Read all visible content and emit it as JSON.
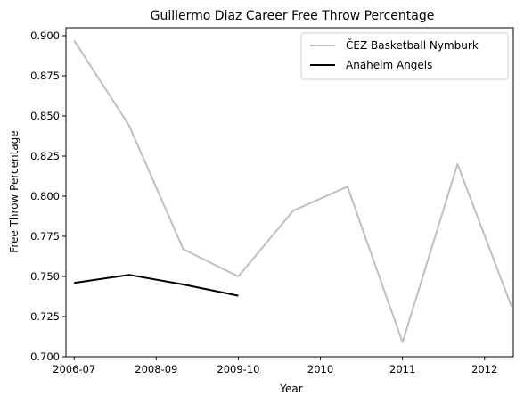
{
  "chart_data": {
    "type": "line",
    "title": "Guillermo Diaz  Career Free Throw Percentage",
    "xlabel": "Year",
    "ylabel": "Free Throw Percentage",
    "x_ticks": [
      "2006-07",
      "2008-09",
      "2009-10",
      "2010",
      "2011",
      "2012"
    ],
    "y_ticks": [
      "0.700",
      "0.725",
      "0.750",
      "0.775",
      "0.800",
      "0.825",
      "0.850",
      "0.875",
      "0.900"
    ],
    "ylim": [
      0.7,
      0.905
    ],
    "xlim": [
      -0.1,
      5.35
    ],
    "grid": false,
    "legend_position": "top-right",
    "series": [
      {
        "name": "ČEZ Basketball Nymburk",
        "color": "#bfbfbf",
        "x": [
          0,
          0.67,
          1.33,
          2.0,
          2.67,
          3.33,
          4.0,
          4.67,
          5.33
        ],
        "values": [
          0.897,
          0.844,
          0.767,
          0.75,
          0.791,
          0.806,
          0.709,
          0.82,
          0.731
        ]
      },
      {
        "name": "Anaheim Angels",
        "color": "#000000",
        "x": [
          0,
          0.67,
          1.33,
          2.0
        ],
        "values": [
          0.746,
          0.751,
          0.745,
          0.738
        ]
      }
    ]
  }
}
